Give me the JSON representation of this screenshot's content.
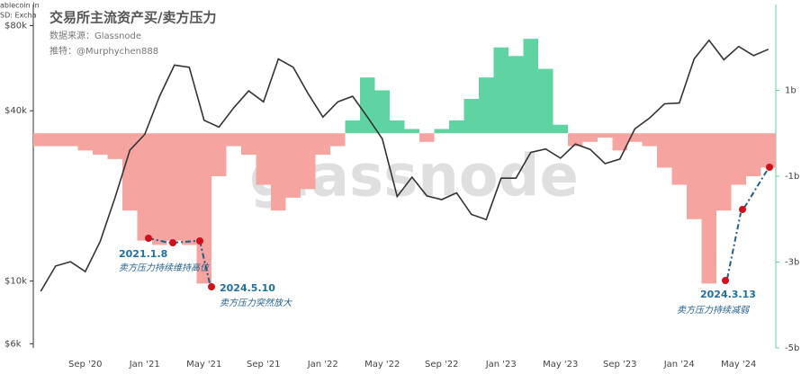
{
  "chart_data": {
    "type": "combo",
    "title": "交易所主流资产买/卖方压力",
    "subtitle": "数据来源：Glassnode",
    "author": "推特：@Murphychen888",
    "watermark": "glassnode",
    "legend_fragments": [
      "ablecoin In",
      "SD: Excha"
    ],
    "categories": [
      null,
      null,
      null,
      "Sep '20",
      null,
      null,
      null,
      "Jan '21",
      null,
      null,
      null,
      "May '21",
      null,
      null,
      null,
      "Sep '21",
      null,
      null,
      null,
      "Jan '22",
      null,
      null,
      null,
      "May '22",
      null,
      null,
      null,
      "Sep '22",
      null,
      null,
      null,
      "Jan '23",
      null,
      null,
      null,
      "May '23",
      null,
      null,
      null,
      "Sep '23",
      null,
      null,
      null,
      "Jan '24",
      null,
      null,
      null,
      "May '24",
      null,
      null
    ],
    "ylog": true,
    "ylim": [
      5800,
      95000
    ],
    "yticks": [
      {
        "value": 6000,
        "label": "$6k"
      },
      {
        "value": 10000,
        "label": "$10k"
      },
      {
        "value": 40000,
        "label": "$40k"
      },
      {
        "value": 80000,
        "label": "$80k"
      }
    ],
    "y2lim": [
      -5,
      3
    ],
    "y2ticks": [
      {
        "value": 1,
        "label": "1b"
      },
      {
        "value": -1,
        "label": "-1b"
      },
      {
        "value": -3,
        "label": "-3b"
      },
      {
        "value": -5,
        "label": "-5b"
      }
    ],
    "series": [
      {
        "type": "bar",
        "axis": "y2",
        "positive_color": "#5fd4a2",
        "negative_color": "#f5a4a0",
        "values": [
          -0.3,
          -0.3,
          -0.3,
          -0.4,
          -0.5,
          -0.6,
          -1.8,
          -2.5,
          -2.6,
          -2.5,
          -2.6,
          -3.5,
          -1.0,
          -0.3,
          -0.5,
          -1.2,
          -1.8,
          -1.5,
          -1.3,
          -0.5,
          -0.3,
          0.3,
          1.3,
          1.0,
          0.3,
          0.1,
          -0.2,
          0.1,
          0.3,
          0.8,
          1.3,
          2.0,
          1.8,
          2.2,
          1.5,
          0.2,
          -0.3,
          -0.2,
          -0.1,
          -0.4,
          -0.2,
          -0.3,
          -0.8,
          -1.2,
          -2.0,
          -3.5,
          -1.8,
          -1.2,
          -1.0,
          -0.8
        ]
      },
      {
        "type": "line",
        "color": "#333333",
        "values": [
          9200,
          11300,
          11700,
          10800,
          13800,
          19700,
          29000,
          33000,
          45000,
          58000,
          57000,
          37000,
          35000,
          41000,
          47000,
          43000,
          61000,
          57000,
          46000,
          38000,
          43000,
          45000,
          38000,
          31800,
          19900,
          23300,
          20000,
          19400,
          20500,
          17200,
          16500,
          23100,
          23100,
          28500,
          29300,
          27200,
          30500,
          29200,
          26000,
          27000,
          34500,
          37700,
          42300,
          42600,
          61000,
          71000,
          60600,
          67500,
          62700,
          66000
        ]
      }
    ],
    "annotations": [
      {
        "date": "2021.1.8",
        "text": "卖方压力持续维持高位"
      },
      {
        "date": "2024.5.10",
        "text": "卖方压力突然放大"
      },
      {
        "date": "2024.3.13",
        "text": "卖方压力持续减弱"
      }
    ]
  }
}
